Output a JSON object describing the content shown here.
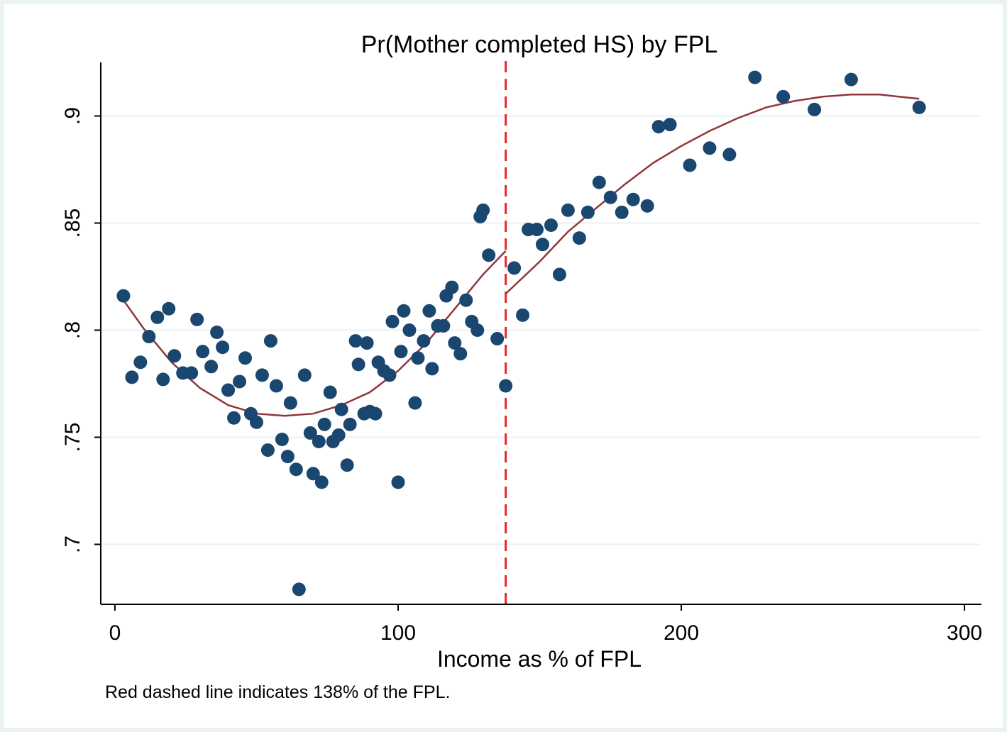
{
  "chart_data": {
    "type": "scatter",
    "title": "Pr(Mother completed HS) by FPL",
    "xlabel": "Income as % of FPL",
    "ylabel": "",
    "note": "Red dashed line indicates 138% of the FPL.",
    "xlim": [
      -5,
      306
    ],
    "ylim": [
      0.672,
      0.925
    ],
    "x_ticks": [
      0,
      100,
      200,
      300
    ],
    "x_tick_labels": [
      "0",
      "100",
      "200",
      "300"
    ],
    "y_ticks": [
      0.7,
      0.75,
      0.8,
      0.85,
      0.9
    ],
    "y_tick_labels": [
      ".7",
      ".75",
      ".8",
      ".85",
      ".9"
    ],
    "grid": true,
    "threshold": 138,
    "colors": {
      "marker": "#1a476f",
      "fit": "#90353b",
      "threshold": "#e8262b",
      "grid": "#eaf2f3",
      "background": "#ffffff",
      "border": "#eaf2f3"
    },
    "points": [
      {
        "x": 3,
        "y": 0.816
      },
      {
        "x": 6,
        "y": 0.778
      },
      {
        "x": 9,
        "y": 0.785
      },
      {
        "x": 12,
        "y": 0.797
      },
      {
        "x": 15,
        "y": 0.806
      },
      {
        "x": 17,
        "y": 0.777
      },
      {
        "x": 19,
        "y": 0.81
      },
      {
        "x": 21,
        "y": 0.788
      },
      {
        "x": 24,
        "y": 0.78
      },
      {
        "x": 27,
        "y": 0.78
      },
      {
        "x": 29,
        "y": 0.805
      },
      {
        "x": 31,
        "y": 0.79
      },
      {
        "x": 34,
        "y": 0.783
      },
      {
        "x": 36,
        "y": 0.799
      },
      {
        "x": 38,
        "y": 0.792
      },
      {
        "x": 40,
        "y": 0.772
      },
      {
        "x": 42,
        "y": 0.759
      },
      {
        "x": 44,
        "y": 0.776
      },
      {
        "x": 46,
        "y": 0.787
      },
      {
        "x": 48,
        "y": 0.761
      },
      {
        "x": 50,
        "y": 0.757
      },
      {
        "x": 52,
        "y": 0.779
      },
      {
        "x": 54,
        "y": 0.744
      },
      {
        "x": 55,
        "y": 0.795
      },
      {
        "x": 57,
        "y": 0.774
      },
      {
        "x": 59,
        "y": 0.749
      },
      {
        "x": 61,
        "y": 0.741
      },
      {
        "x": 62,
        "y": 0.766
      },
      {
        "x": 64,
        "y": 0.735
      },
      {
        "x": 65,
        "y": 0.679
      },
      {
        "x": 67,
        "y": 0.779
      },
      {
        "x": 69,
        "y": 0.752
      },
      {
        "x": 70,
        "y": 0.733
      },
      {
        "x": 72,
        "y": 0.748
      },
      {
        "x": 73,
        "y": 0.729
      },
      {
        "x": 74,
        "y": 0.756
      },
      {
        "x": 76,
        "y": 0.771
      },
      {
        "x": 77,
        "y": 0.748
      },
      {
        "x": 79,
        "y": 0.751
      },
      {
        "x": 80,
        "y": 0.763
      },
      {
        "x": 82,
        "y": 0.737
      },
      {
        "x": 83,
        "y": 0.756
      },
      {
        "x": 85,
        "y": 0.795
      },
      {
        "x": 86,
        "y": 0.784
      },
      {
        "x": 88,
        "y": 0.761
      },
      {
        "x": 89,
        "y": 0.794
      },
      {
        "x": 90,
        "y": 0.762
      },
      {
        "x": 92,
        "y": 0.761
      },
      {
        "x": 93,
        "y": 0.785
      },
      {
        "x": 95,
        "y": 0.781
      },
      {
        "x": 97,
        "y": 0.779
      },
      {
        "x": 98,
        "y": 0.804
      },
      {
        "x": 100,
        "y": 0.729
      },
      {
        "x": 101,
        "y": 0.79
      },
      {
        "x": 102,
        "y": 0.809
      },
      {
        "x": 104,
        "y": 0.8
      },
      {
        "x": 106,
        "y": 0.766
      },
      {
        "x": 107,
        "y": 0.787
      },
      {
        "x": 109,
        "y": 0.795
      },
      {
        "x": 111,
        "y": 0.809
      },
      {
        "x": 112,
        "y": 0.782
      },
      {
        "x": 114,
        "y": 0.802
      },
      {
        "x": 116,
        "y": 0.802
      },
      {
        "x": 117,
        "y": 0.816
      },
      {
        "x": 119,
        "y": 0.82
      },
      {
        "x": 120,
        "y": 0.794
      },
      {
        "x": 122,
        "y": 0.789
      },
      {
        "x": 124,
        "y": 0.814
      },
      {
        "x": 126,
        "y": 0.804
      },
      {
        "x": 128,
        "y": 0.8
      },
      {
        "x": 129,
        "y": 0.853
      },
      {
        "x": 130,
        "y": 0.856
      },
      {
        "x": 132,
        "y": 0.835
      },
      {
        "x": 135,
        "y": 0.796
      },
      {
        "x": 138,
        "y": 0.774
      },
      {
        "x": 141,
        "y": 0.829
      },
      {
        "x": 144,
        "y": 0.807
      },
      {
        "x": 146,
        "y": 0.847
      },
      {
        "x": 149,
        "y": 0.847
      },
      {
        "x": 151,
        "y": 0.84
      },
      {
        "x": 154,
        "y": 0.849
      },
      {
        "x": 157,
        "y": 0.826
      },
      {
        "x": 160,
        "y": 0.856
      },
      {
        "x": 164,
        "y": 0.843
      },
      {
        "x": 167,
        "y": 0.855
      },
      {
        "x": 171,
        "y": 0.869
      },
      {
        "x": 175,
        "y": 0.862
      },
      {
        "x": 179,
        "y": 0.855
      },
      {
        "x": 183,
        "y": 0.861
      },
      {
        "x": 188,
        "y": 0.858
      },
      {
        "x": 192,
        "y": 0.895
      },
      {
        "x": 196,
        "y": 0.896
      },
      {
        "x": 203,
        "y": 0.877
      },
      {
        "x": 210,
        "y": 0.885
      },
      {
        "x": 217,
        "y": 0.882
      },
      {
        "x": 226,
        "y": 0.918
      },
      {
        "x": 236,
        "y": 0.909
      },
      {
        "x": 247,
        "y": 0.903
      },
      {
        "x": 260,
        "y": 0.917
      },
      {
        "x": 284,
        "y": 0.904
      }
    ],
    "fit_left": [
      {
        "x": 3,
        "y": 0.814
      },
      {
        "x": 10,
        "y": 0.801
      },
      {
        "x": 20,
        "y": 0.785
      },
      {
        "x": 30,
        "y": 0.773
      },
      {
        "x": 40,
        "y": 0.765
      },
      {
        "x": 50,
        "y": 0.761
      },
      {
        "x": 60,
        "y": 0.76
      },
      {
        "x": 70,
        "y": 0.761
      },
      {
        "x": 80,
        "y": 0.765
      },
      {
        "x": 90,
        "y": 0.771
      },
      {
        "x": 100,
        "y": 0.781
      },
      {
        "x": 110,
        "y": 0.794
      },
      {
        "x": 120,
        "y": 0.81
      },
      {
        "x": 130,
        "y": 0.826
      },
      {
        "x": 138,
        "y": 0.837
      }
    ],
    "fit_right": [
      {
        "x": 138,
        "y": 0.817
      },
      {
        "x": 150,
        "y": 0.832
      },
      {
        "x": 160,
        "y": 0.846
      },
      {
        "x": 170,
        "y": 0.857
      },
      {
        "x": 180,
        "y": 0.868
      },
      {
        "x": 190,
        "y": 0.878
      },
      {
        "x": 200,
        "y": 0.886
      },
      {
        "x": 210,
        "y": 0.893
      },
      {
        "x": 220,
        "y": 0.899
      },
      {
        "x": 230,
        "y": 0.904
      },
      {
        "x": 240,
        "y": 0.907
      },
      {
        "x": 250,
        "y": 0.909
      },
      {
        "x": 260,
        "y": 0.91
      },
      {
        "x": 270,
        "y": 0.91
      },
      {
        "x": 284,
        "y": 0.908
      }
    ]
  }
}
